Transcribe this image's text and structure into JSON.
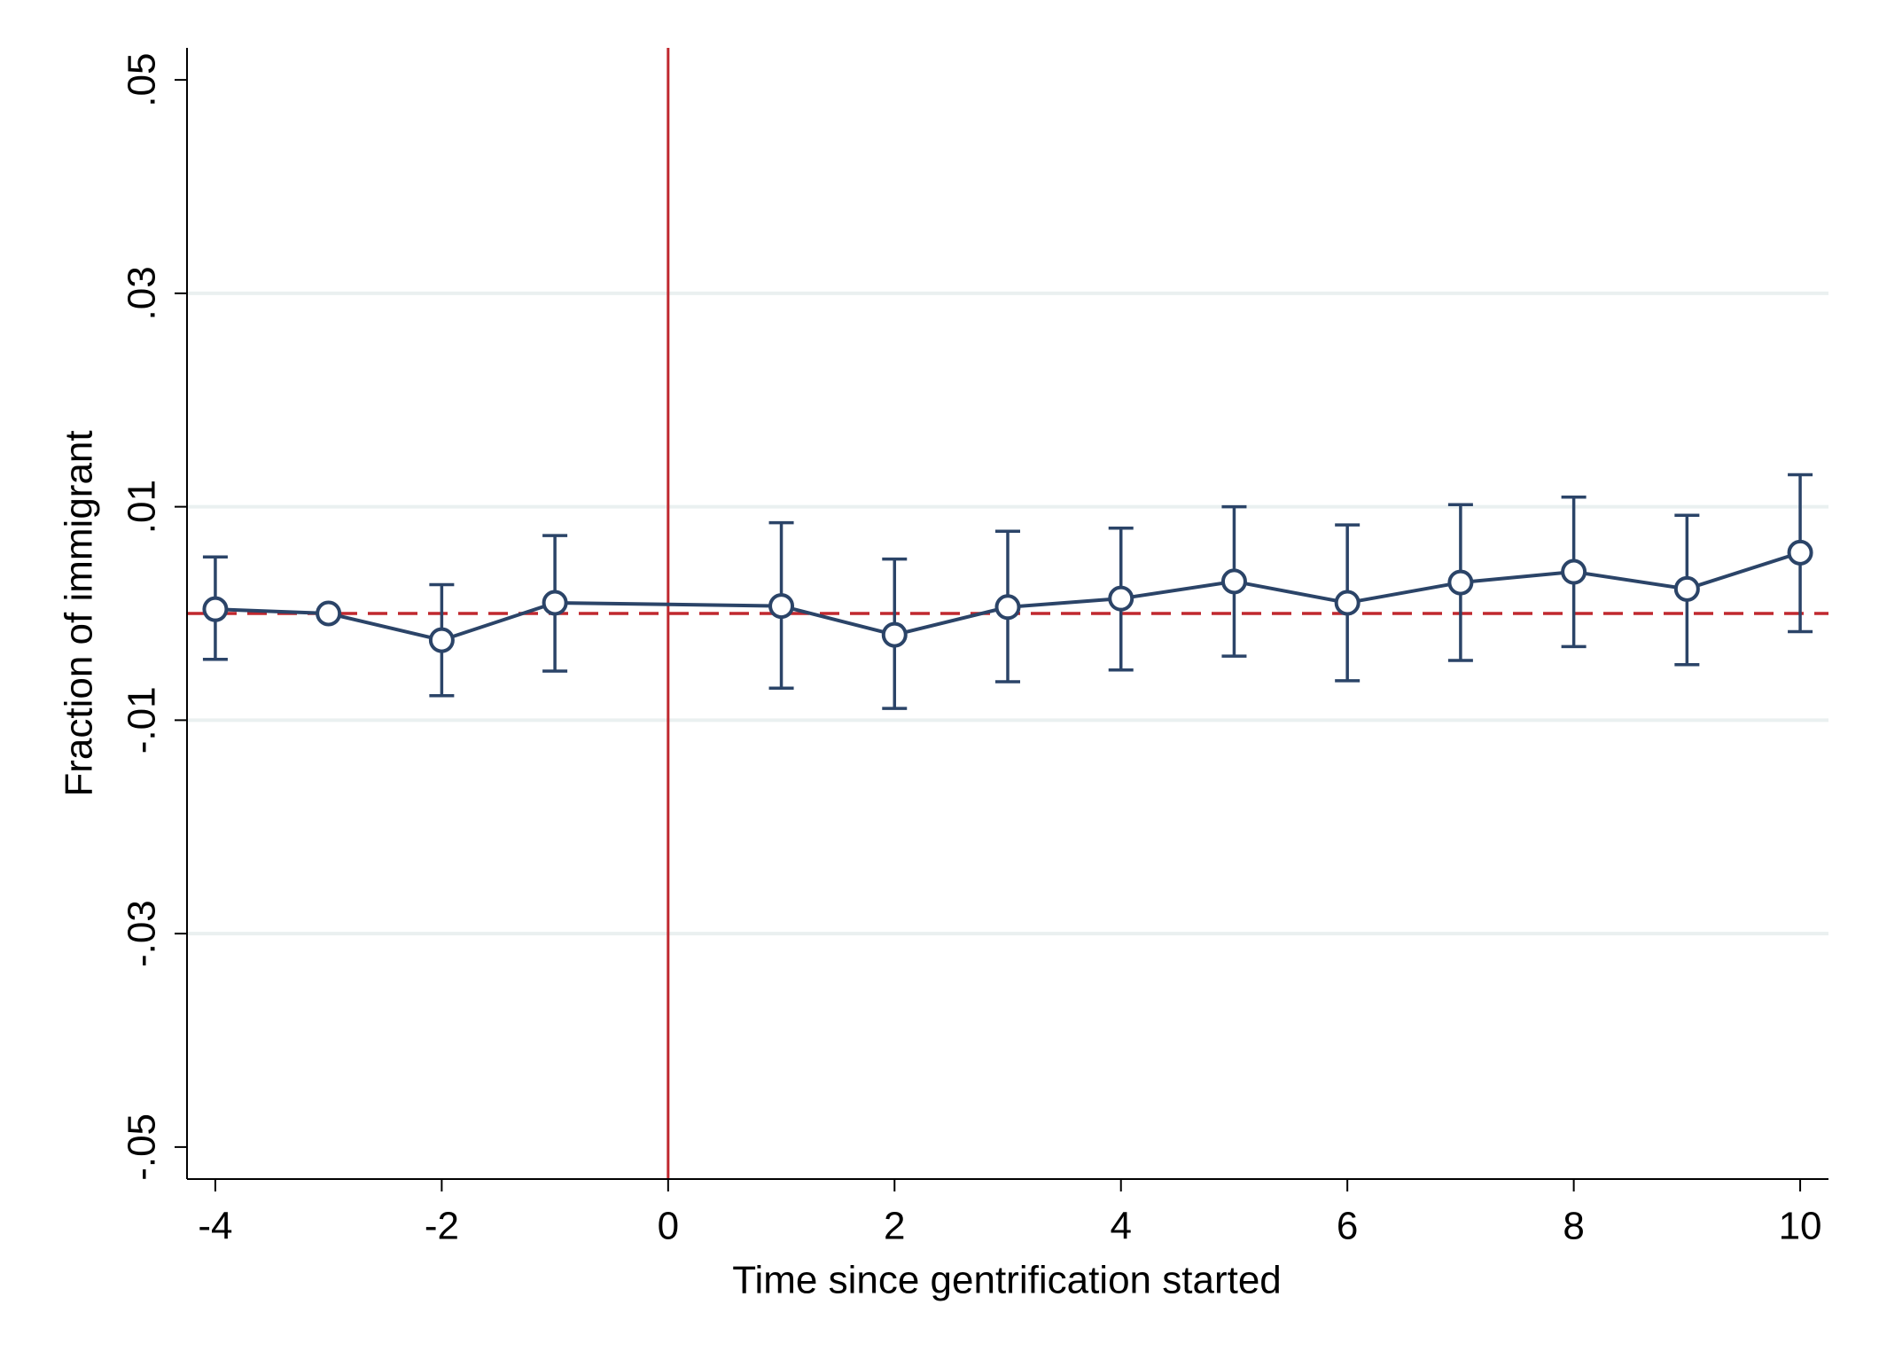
{
  "chart_data": {
    "type": "line",
    "x_label": "Time since gentrification started",
    "y_label": "Fraction of immigrant",
    "x": [
      -4,
      -3,
      -2,
      -1,
      1,
      2,
      3,
      4,
      5,
      6,
      7,
      8,
      9,
      10
    ],
    "series": [
      {
        "color": "#2b4468",
        "values": [
          0.0004,
          0.0,
          -0.0025,
          0.001,
          0.0007,
          -0.002,
          0.0006,
          0.0014,
          0.003,
          0.001,
          0.0029,
          0.0039,
          0.0023,
          0.0057
        ],
        "lower": [
          -0.0043,
          null,
          -0.0077,
          -0.0054,
          -0.007,
          -0.0089,
          -0.0064,
          -0.0053,
          -0.004,
          -0.0063,
          -0.0044,
          -0.0031,
          -0.0048,
          -0.0017
        ],
        "upper": [
          0.0053,
          null,
          0.0027,
          0.0073,
          0.0085,
          0.0051,
          0.0077,
          0.008,
          0.01,
          0.0083,
          0.0102,
          0.0109,
          0.0092,
          0.013
        ]
      }
    ],
    "xlim": [
      -4.25,
      10.25
    ],
    "xticks": [
      -4,
      -2,
      0,
      2,
      4,
      6,
      8,
      10
    ],
    "ylim": [
      -0.053,
      0.053
    ],
    "yticks": [
      {
        "value": -0.05,
        "label": "-.05"
      },
      {
        "value": -0.03,
        "label": "-.03"
      },
      {
        "value": -0.01,
        "label": "-.01"
      },
      {
        "value": 0.01,
        "label": ".01"
      },
      {
        "value": 0.03,
        "label": ".03"
      },
      {
        "value": 0.05,
        "label": ".05"
      }
    ],
    "grid": true,
    "vline": 0,
    "hline": 0,
    "ref_color": "#c0282f"
  }
}
